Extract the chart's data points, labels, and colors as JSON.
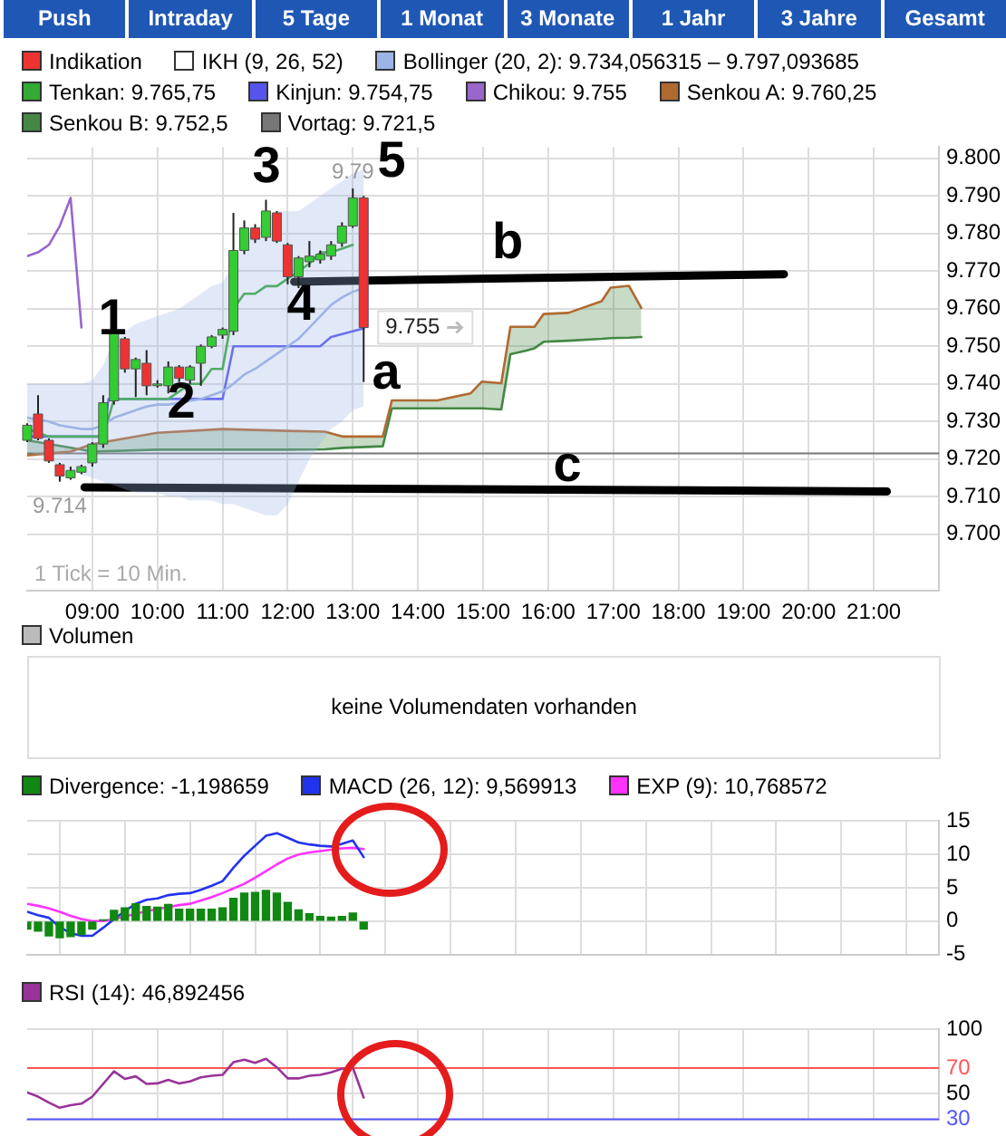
{
  "chart_data": [
    {
      "type": "other",
      "annotations": [
        "Push",
        "Intraday",
        "5 Tage",
        "1 Monat",
        "3 Monate",
        "1 Jahr",
        "3 Jahre",
        "Gesamt"
      ]
    },
    {
      "type": "candlestick",
      "legend_title": "IKH (9, 26, 52)",
      "legend": "top",
      "grid": true,
      "xlim": [
        8,
        22
      ],
      "xticks": [
        {
          "value": 9,
          "label": "09:00"
        },
        {
          "value": 10,
          "label": "10:00"
        },
        {
          "value": 11,
          "label": "11:00"
        },
        {
          "value": 12,
          "label": "12:00"
        },
        {
          "value": 13,
          "label": "13:00"
        },
        {
          "value": 14,
          "label": "14:00"
        },
        {
          "value": 15,
          "label": "15:00"
        },
        {
          "value": 16,
          "label": "16:00"
        },
        {
          "value": 17,
          "label": "17:00"
        },
        {
          "value": 18,
          "label": "18:00"
        },
        {
          "value": 19,
          "label": "19:00"
        },
        {
          "value": 20,
          "label": "20:00"
        },
        {
          "value": 21,
          "label": "21:00"
        }
      ],
      "ylim": [
        9685,
        9803
      ],
      "yticks": [
        {
          "value": 9700,
          "label": "9.700"
        },
        {
          "value": 9710,
          "label": "9.710"
        },
        {
          "value": 9720,
          "label": "9.720"
        },
        {
          "value": 9730,
          "label": "9.730"
        },
        {
          "value": 9740,
          "label": "9.740"
        },
        {
          "value": 9750,
          "label": "9.750"
        },
        {
          "value": 9760,
          "label": "9.760"
        },
        {
          "value": 9770,
          "label": "9.770"
        },
        {
          "value": 9780,
          "label": "9.780"
        },
        {
          "value": 9790,
          "label": "9.790"
        },
        {
          "value": 9800,
          "label": "9.800"
        }
      ],
      "series": [
        {
          "type": "candlestick",
          "name": "Indikation",
          "color": "#ee3333",
          "x": [
            8,
            8.1667,
            8.3333,
            8.5,
            8.6667,
            8.8333,
            9,
            9.1667,
            9.3333,
            9.5,
            9.6667,
            9.8333,
            10,
            10.1667,
            10.3333,
            10.5,
            10.6667,
            10.8333,
            11,
            11.1667,
            11.3333,
            11.5,
            11.6667,
            11.8333,
            12,
            12.1667,
            12.3333,
            12.5,
            12.6667,
            12.8333,
            13,
            13.1667
          ],
          "ohlc": [
            [
              9725,
              9729.5,
              9724.5,
              9729
            ],
            [
              9732,
              9737,
              9725,
              9725.5
            ],
            [
              9725,
              9725.5,
              9719,
              9719.5
            ],
            [
              9718.5,
              9719,
              9714,
              9715.5
            ],
            [
              9715,
              9718,
              9714.5,
              9717
            ],
            [
              9716.5,
              9718.5,
              9716,
              9718
            ],
            [
              9719,
              9724.5,
              9718,
              9724
            ],
            [
              9724,
              9737,
              9723,
              9735
            ],
            [
              9735.5,
              9755,
              9734.5,
              9753.5
            ],
            [
              9752,
              9752.5,
              9743,
              9744
            ],
            [
              9744,
              9747,
              9736.5,
              9746.5
            ],
            [
              9745.5,
              9749,
              9737,
              9739.5
            ],
            [
              9740,
              9741,
              9739,
              9740
            ],
            [
              9739.5,
              9746,
              9737.5,
              9744.5
            ],
            [
              9744.5,
              9745,
              9740.5,
              9741.5
            ],
            [
              9741,
              9745,
              9740,
              9744.5
            ],
            [
              9745.5,
              9750.5,
              9739.5,
              9750
            ],
            [
              9750,
              9753,
              9749.5,
              9752.5
            ],
            [
              9753,
              9755,
              9752,
              9754.5
            ],
            [
              9754,
              9785.5,
              9753,
              9775.5
            ],
            [
              9775.5,
              9783.5,
              9774.5,
              9781.5
            ],
            [
              9781.5,
              9782.5,
              9777.5,
              9778.5
            ],
            [
              9779,
              9789,
              9778,
              9786
            ],
            [
              9785.5,
              9786,
              9777.5,
              9778
            ],
            [
              9777,
              9777.5,
              9766.5,
              9768.5
            ],
            [
              9768.5,
              9774,
              9765.5,
              9773.5
            ],
            [
              9772.5,
              9778,
              9771,
              9774
            ],
            [
              9773,
              9775.5,
              9772,
              9774.5
            ],
            [
              9774,
              9778,
              9773,
              9777
            ],
            [
              9777.5,
              9783,
              9776.5,
              9782
            ],
            [
              9782,
              9792,
              9781.5,
              9789.5
            ],
            [
              9789.5,
              9790,
              9740.5,
              9755
            ]
          ],
          "colors": [
            "#33cc33",
            "#ee3333",
            "#ee3333",
            "#ee3333",
            "#33cc33",
            "#33cc33",
            "#33cc33",
            "#33cc33",
            "#33cc33",
            "#ee3333",
            "#33cc33",
            "#ee3333",
            "#33cc33",
            "#33cc33",
            "#ee3333",
            "#33cc33",
            "#33cc33",
            "#33cc33",
            "#33cc33",
            "#33cc33",
            "#33cc33",
            "#ee3333",
            "#33cc33",
            "#ee3333",
            "#ee3333",
            "#33cc33",
            "#33cc33",
            "#33cc33",
            "#33cc33",
            "#33cc33",
            "#33cc33",
            "#ee3333"
          ],
          "value_labels": [
            null,
            null,
            null,
            "9.714",
            null,
            null,
            null,
            null,
            null,
            null,
            null,
            null,
            null,
            null,
            null,
            null,
            null,
            null,
            null,
            null,
            null,
            null,
            null,
            null,
            null,
            null,
            null,
            null,
            null,
            null,
            "9.79",
            "9.755"
          ]
        },
        {
          "type": "line",
          "name": "Bollinger (20, 2): 9.734,056315 – 9.797,093685",
          "color": "#9db4e6",
          "x": [
            8,
            8.1667,
            8.3333,
            8.5,
            8.6667,
            8.8333,
            9,
            9.1667,
            9.3333,
            9.5,
            9.6667,
            9.8333,
            10,
            10.1667,
            10.3333,
            10.5,
            10.6667,
            10.8333,
            11,
            11.1667,
            11.3333,
            11.5,
            11.6667,
            11.8333,
            12,
            12.1667,
            12.3333,
            12.5,
            12.6667,
            12.8333,
            13,
            13.1667
          ],
          "values": [
            9731,
            9730.5,
            9730,
            9729,
            9728.5,
            9728,
            9728,
            9729,
            9731,
            9732,
            9733,
            9734,
            9734.5,
            9734.5,
            9735,
            9735.5,
            9736,
            9737,
            9738,
            9740,
            9742.5,
            9744,
            9746,
            9748,
            9750,
            9752,
            9755,
            9758,
            9761,
            9763,
            9764.5,
            9765.5
          ],
          "upper": [
            9740,
            9740,
            9740,
            9740,
            9740,
            9740,
            9741,
            9745,
            9752,
            9754,
            9756,
            9757,
            9758,
            9759,
            9760,
            9762,
            9764,
            9766,
            9767,
            9772,
            9778,
            9781,
            9784,
            9786,
            9786,
            9786,
            9788,
            9790,
            9792,
            9794,
            9796,
            9797
          ],
          "lower": [
            9722,
            9721,
            9720,
            9718,
            9717,
            9716,
            9715,
            9714,
            9713,
            9712,
            9711,
            9711,
            9711,
            9710,
            9710,
            9709,
            9709,
            9709,
            9708,
            9708,
            9707,
            9706,
            9705,
            9705,
            9708,
            9714,
            9720,
            9724,
            9728,
            9730,
            9733,
            9734
          ]
        },
        {
          "type": "line",
          "name": "Tenkan: 9.765,75",
          "color": "#33aa33",
          "x": [
            8,
            8.1667,
            8.3333,
            8.5,
            8.6667,
            8.8333,
            9,
            9.1667,
            9.3333,
            9.5,
            9.6667,
            9.8333,
            10,
            10.1667,
            10.3333,
            10.5,
            10.6667,
            10.8333,
            11,
            11.1667,
            11.3333,
            11.5,
            11.6667,
            11.8333,
            12,
            12.1667,
            12.3333,
            12.5,
            12.6667,
            12.8333,
            13
          ],
          "values": [
            9728,
            9727,
            9726,
            9726,
            9726,
            9726,
            9726,
            9726,
            9736,
            9736,
            9736,
            9736,
            9736,
            9736,
            9738,
            9740,
            9740,
            9744,
            9744,
            9760,
            9764,
            9764,
            9766,
            9766,
            9768,
            9770,
            9772,
            9775,
            9775,
            9776,
            9777
          ]
        },
        {
          "type": "line",
          "name": "Kinjun: 9.754,75",
          "color": "#5555ee",
          "x": [
            8,
            9.1667,
            9.25,
            11,
            11.1667,
            12.5,
            12.6667,
            13.1667
          ],
          "values": [
            9726,
            9726,
            9736,
            9736,
            9750,
            9750,
            9752.5,
            9754.75
          ]
        },
        {
          "type": "line",
          "name": "Chikou: 9.755",
          "color": "#9966cc",
          "x": [
            8,
            8.1667,
            8.3333,
            8.5,
            8.6667,
            8.8333
          ],
          "values": [
            9774,
            9775,
            9777,
            9782,
            9789.5,
            9755
          ]
        },
        {
          "type": "line",
          "name": "Senkou A: 9.760,25",
          "color": "#b06a30",
          "x": [
            8,
            8.67,
            9,
            10,
            11,
            12,
            12.57,
            12.85,
            13.46,
            13.6,
            14.3,
            14.81,
            14.98,
            15.28,
            15.42,
            15.65,
            15.79,
            15.93,
            16.31,
            16.82,
            16.96,
            17.24,
            17.43
          ],
          "values": [
            9721,
            9722,
            9724,
            9727,
            9728,
            9727.5,
            9727.3,
            9726,
            9726,
            9735.6,
            9735.6,
            9737.5,
            9740.6,
            9740.2,
            9755.2,
            9755.2,
            9755.2,
            9758.6,
            9758.9,
            9762,
            9765.6,
            9766.1,
            9760.25
          ]
        },
        {
          "type": "line",
          "name": "Senkou B: 9.752,5",
          "color": "#448844",
          "x": [
            8,
            8.67,
            9,
            10,
            11,
            12,
            12.57,
            12.85,
            13.46,
            13.6,
            14.3,
            14.81,
            14.98,
            15.28,
            15.42,
            15.65,
            15.79,
            15.93,
            16.31,
            16.82,
            16.96,
            17.24,
            17.43
          ],
          "values": [
            9725,
            9723,
            9722,
            9722.5,
            9722.5,
            9722.5,
            9722.6,
            9723,
            9723.4,
            9733.5,
            9733.5,
            9733.5,
            9733.5,
            9733.2,
            9747.9,
            9748.8,
            9749.5,
            9751.2,
            9751.5,
            9752,
            9752.2,
            9752.3,
            9752.5
          ],
          "lower": [
            9725,
            9723,
            9722,
            9722.5,
            9722.5,
            9722.5,
            9722.6,
            9723,
            9723.4,
            9733.5,
            9733.5,
            9733.5,
            9733.5,
            9733.2,
            9747.9,
            9748.8,
            9749.5,
            9751.2,
            9751.5,
            9752,
            9752.2,
            9752.3,
            9752.5
          ],
          "upper": [
            9721,
            9722,
            9724,
            9727,
            9728,
            9727.5,
            9727.3,
            9726,
            9726,
            9735.6,
            9735.6,
            9737.5,
            9740.6,
            9740.2,
            9755.2,
            9755.2,
            9755.2,
            9758.6,
            9758.9,
            9762,
            9765.6,
            9766.1,
            9760.25
          ]
        },
        {
          "type": "line",
          "color": "#000000",
          "x": [
            12.1,
            19.62
          ],
          "values": [
            9767.2,
            9769.2
          ]
        },
        {
          "type": "line",
          "color": "#000000",
          "x": [
            8.88,
            21.2
          ],
          "values": [
            9712.5,
            9711.4
          ]
        }
      ],
      "ref_lines": [
        {
          "axis": "y",
          "value": 9721.5,
          "label": "Vortag: 9.721,5",
          "color": "#777777"
        }
      ],
      "annotations": [
        "1 Tick = 10 Min.",
        "1",
        "2",
        "3",
        "4",
        "5",
        "a",
        "b",
        "c"
      ]
    },
    {
      "type": "other",
      "title": "Volumen",
      "annotations": [
        "keine Volumendaten vorhanden"
      ]
    },
    {
      "type": "line",
      "legend": "top",
      "grid": true,
      "tick_labels": "y",
      "xlim": [
        8,
        22
      ],
      "xticks": [
        9,
        10,
        11,
        12,
        13,
        14,
        15,
        16,
        17,
        18,
        19,
        20,
        21
      ],
      "ylim": [
        -5,
        15
      ],
      "yticks": [
        -5,
        0,
        5,
        10,
        15
      ],
      "series": [
        {
          "type": "bar",
          "name": "Divergence: -1,198659",
          "color": "#118811",
          "x": [
            8,
            8.1667,
            8.3333,
            8.5,
            8.6667,
            8.8333,
            9,
            9.1667,
            9.3333,
            9.5,
            9.6667,
            9.8333,
            10,
            10.1667,
            10.3333,
            10.5,
            10.6667,
            10.8333,
            11,
            11.1667,
            11.3333,
            11.5,
            11.6667,
            11.8333,
            12,
            12.1667,
            12.3333,
            12.5,
            12.6667,
            12.8333,
            13,
            13.1667
          ],
          "values": [
            -1.2,
            -1.5,
            -2.2,
            -2.5,
            -2.3,
            -2,
            -1.2,
            0.2,
            1.6,
            2,
            2.6,
            2.2,
            2.1,
            2.5,
            1.8,
            1.8,
            1.8,
            1.8,
            2,
            3.4,
            4.2,
            4.3,
            4.6,
            4.2,
            2.8,
            1.7,
            1.1,
            0.7,
            0.6,
            0.7,
            1.2,
            -1.2
          ]
        },
        {
          "type": "line",
          "name": "MACD (26, 12): 9,569913",
          "color": "#2233ee",
          "x": [
            8,
            8.1667,
            8.3333,
            8.5,
            8.6667,
            8.8333,
            9,
            9.1667,
            9.3333,
            9.5,
            9.6667,
            9.8333,
            10,
            10.1667,
            10.3333,
            10.5,
            10.6667,
            10.8333,
            11,
            11.1667,
            11.3333,
            11.5,
            11.6667,
            11.8333,
            12,
            12.1667,
            12.3333,
            12.5,
            12.6667,
            12.8333,
            13,
            13.1667
          ],
          "values": [
            1.4,
            0.9,
            0.5,
            -0.9,
            -1.8,
            -2.2,
            -2.2,
            -1,
            0.3,
            1.5,
            2.6,
            3.2,
            3.4,
            3.9,
            4.1,
            4.2,
            4.7,
            5.3,
            6,
            8,
            9.8,
            11.3,
            12.8,
            13.2,
            12.5,
            11.8,
            11.5,
            11.3,
            11.2,
            11.6,
            12.1,
            9.6
          ]
        },
        {
          "type": "line",
          "name": "EXP (9): 10,768572",
          "color": "#ff33ff",
          "x": [
            8,
            8.1667,
            8.3333,
            8.5,
            8.6667,
            8.8333,
            9,
            9.1667,
            9.3333,
            9.5,
            9.6667,
            9.8333,
            10,
            10.1667,
            10.3333,
            10.5,
            10.6667,
            10.8333,
            11,
            11.1667,
            11.3333,
            11.5,
            11.6667,
            11.8333,
            12,
            12.1667,
            12.3333,
            12.5,
            12.6667,
            12.8333,
            13,
            13.1667
          ],
          "values": [
            2.6,
            2.3,
            1.9,
            1.4,
            0.8,
            0.3,
            0,
            0,
            0.3,
            0.7,
            1.1,
            1.5,
            1.8,
            2.1,
            2.4,
            2.6,
            3.1,
            3.6,
            4.2,
            4.9,
            5.6,
            6.5,
            7.5,
            8.5,
            9.4,
            10,
            10.3,
            10.5,
            10.7,
            10.9,
            11,
            10.8
          ]
        }
      ]
    },
    {
      "type": "line",
      "legend": "top",
      "grid": true,
      "tick_labels": "y",
      "xlim": [
        8,
        22
      ],
      "xticks": [
        9,
        10,
        11,
        12,
        13,
        14,
        15,
        16,
        17,
        18,
        19,
        20,
        21
      ],
      "ylim": [
        30,
        100
      ],
      "yticks": [
        30,
        50,
        70,
        100
      ],
      "series": [
        {
          "type": "line",
          "name": "RSI (14): 46,892456",
          "color": "#993399",
          "x": [
            8,
            8.1667,
            8.3333,
            8.5,
            8.6667,
            8.8333,
            9,
            9.1667,
            9.3333,
            9.5,
            9.6667,
            9.8333,
            10,
            10.1667,
            10.3333,
            10.5,
            10.6667,
            10.8333,
            11,
            11.1667,
            11.3333,
            11.5,
            11.6667,
            11.8333,
            12,
            12.1667,
            12.3333,
            12.5,
            12.6667,
            12.8333,
            13,
            13.1667
          ],
          "values": [
            50.9,
            47.7,
            43,
            39,
            41,
            42.2,
            47.7,
            57.6,
            67.4,
            61.5,
            63.5,
            57.6,
            58,
            60.7,
            58,
            59.5,
            62.7,
            63.9,
            64.6,
            74.5,
            76.4,
            74,
            77.2,
            70.5,
            61.9,
            61.9,
            63.9,
            64.6,
            66.6,
            69.4,
            70.5,
            46.9
          ]
        }
      ],
      "ref_lines": [
        {
          "axis": "y",
          "value": 70,
          "color": "#ff5555"
        },
        {
          "axis": "y",
          "value": 30,
          "color": "#5555ff"
        }
      ]
    }
  ]
}
